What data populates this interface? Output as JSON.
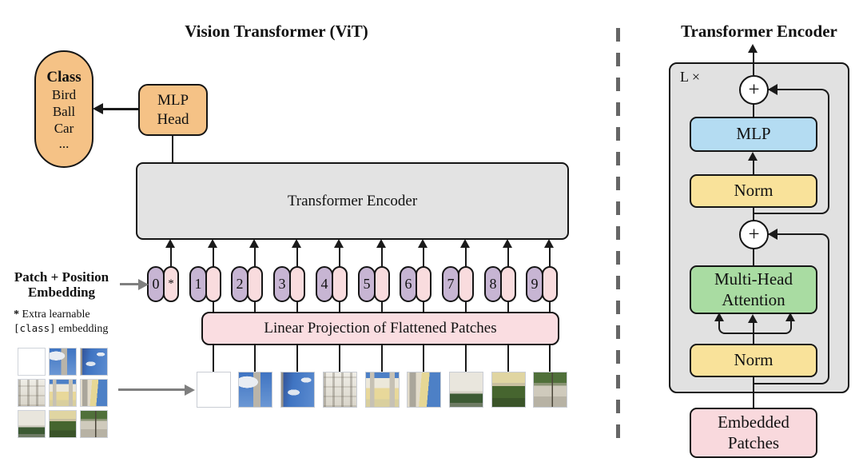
{
  "left_panel": {
    "title": "Vision Transformer (ViT)",
    "class_capsule": {
      "header": "Class",
      "items": [
        "Bird",
        "Ball",
        "Car",
        "..."
      ]
    },
    "mlp_head": {
      "line1": "MLP",
      "line2": "Head"
    },
    "encoder_label": "Transformer Encoder",
    "patch_embedding_label": {
      "line1": "Patch + Position",
      "line2": "Embedding"
    },
    "footnote": {
      "star": "*",
      "line1": " Extra learnable",
      "code": "[class]",
      "line2_rest": " embedding"
    },
    "linear_projection_label": "Linear Projection of Flattened Patches",
    "tokens": [
      {
        "num": "0",
        "extra": "*"
      },
      {
        "num": "1"
      },
      {
        "num": "2"
      },
      {
        "num": "3"
      },
      {
        "num": "4"
      },
      {
        "num": "5"
      },
      {
        "num": "6"
      },
      {
        "num": "7"
      },
      {
        "num": "8"
      },
      {
        "num": "9"
      }
    ],
    "patch_names": [
      "dome-and-sky",
      "sky-and-bell-tower",
      "blue-sky-clouds",
      "white-facade-windows",
      "palace-front-towers",
      "tower-and-yellow-facade",
      "building-over-hedge",
      "facade-and-trees",
      "trees-and-pavement"
    ]
  },
  "right_panel": {
    "title": "Transformer Encoder",
    "loop_label": "L ×",
    "plus": "+",
    "mlp_label": "MLP",
    "norm_top_label": "Norm",
    "mha_label": {
      "line1": "Multi-Head",
      "line2": "Attention"
    },
    "norm_bottom_label": "Norm",
    "embedded_label": {
      "line1": "Embedded",
      "line2": "Patches"
    }
  },
  "colors": {
    "orange": "#F5C286",
    "panel_gray": "#E1E1E1",
    "encoder_gray": "#E3E3E3",
    "purple": "#C7B5D3",
    "pink_pill": "#F9DCDE",
    "pink_box": "#FADDE1",
    "pink_embedded": "#F9D9DD",
    "blue": "#B4DCF2",
    "yellow": "#F9E29A",
    "green": "#A9DCA2",
    "line": "#1a1a1a",
    "gray_arrow": "#7f7f7f",
    "divider": "#666666"
  }
}
